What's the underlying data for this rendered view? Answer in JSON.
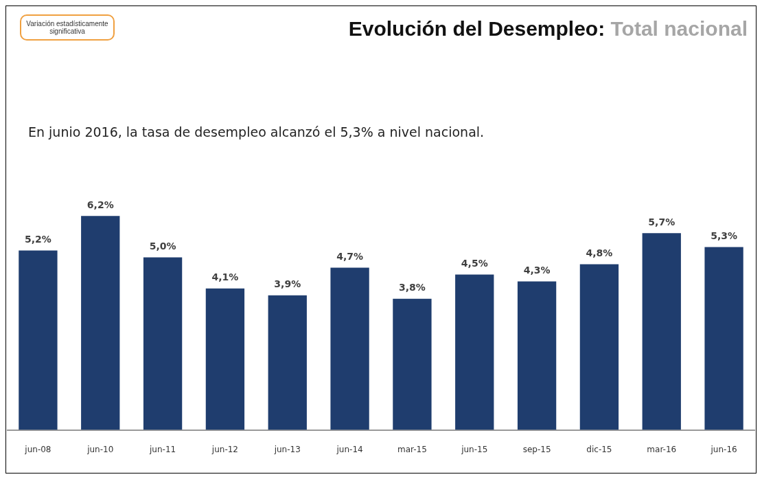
{
  "chart_data": {
    "type": "bar",
    "title": "Evolución del Desempleo: Total nacional",
    "subtitle": "En junio 2016, la tasa de desempleo alcanzó el 5,3% a nivel nacional.",
    "annotations": [
      "Variación estadísticamente significativa"
    ],
    "categories": [
      "jun-08",
      "jun-10",
      "jun-11",
      "jun-12",
      "jun-13",
      "jun-14",
      "mar-15",
      "jun-15",
      "sep-15",
      "dic-15",
      "mar-16",
      "jun-16"
    ],
    "values": [
      5.2,
      6.2,
      5.0,
      4.1,
      3.9,
      4.7,
      3.8,
      4.5,
      4.3,
      4.8,
      5.7,
      5.3
    ],
    "value_labels": [
      "5,2%",
      "6,2%",
      "5,0%",
      "4,1%",
      "3,9%",
      "4,7%",
      "3,8%",
      "4,5%",
      "4,3%",
      "4,8%",
      "5,7%",
      "5,3%"
    ],
    "color": "#1f3d6e",
    "grid": false,
    "legend": false
  }
}
